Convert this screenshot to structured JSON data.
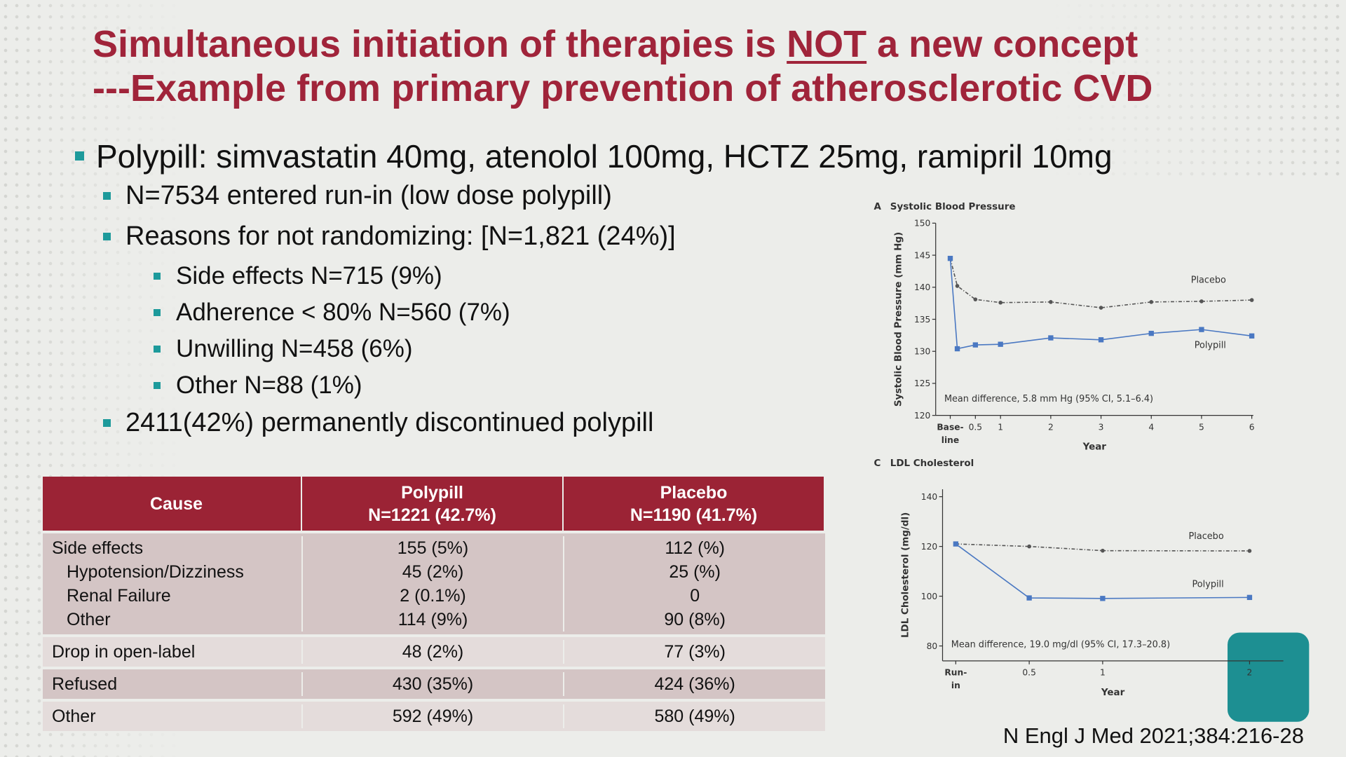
{
  "title": {
    "line1": {
      "before": "Simultaneous initiation of therapies is ",
      "emphasis": "NOT",
      "after": " a new concept"
    },
    "line2": "---Example from primary prevention of atherosclerotic CVD"
  },
  "bullets": [
    {
      "level": 1,
      "text": "Polypill: simvastatin 40mg, atenolol 100mg, HCTZ 25mg, ramipril 10mg"
    },
    {
      "level": 2,
      "text": "N=7534 entered run-in (low dose polypill)"
    },
    {
      "level": 2,
      "text": "Reasons for not randomizing: [N=1,821 (24%)]"
    },
    {
      "level": 3,
      "text": "Side effects N=715 (9%)"
    },
    {
      "level": 3,
      "text": "Adherence < 80% N=560 (7%)"
    },
    {
      "level": 3,
      "text": "Unwilling N=458 (6%)"
    },
    {
      "level": 3,
      "text": "Other N=88 (1%)"
    },
    {
      "level": 2,
      "text": "2411(42%) permanently discontinued polypill"
    }
  ],
  "table": {
    "columns": [
      {
        "name": "Cause"
      },
      {
        "name": "Polypill",
        "n": "N=1221 (42.7%)"
      },
      {
        "name": "Placebo",
        "n": "N=1190 (41.7%)"
      }
    ],
    "groups": [
      {
        "rows": [
          [
            "Side effects",
            "155 (5%)",
            "112 (%)"
          ],
          [
            "Hypotension/Dizziness",
            "45 (2%)",
            "25 (%)"
          ],
          [
            "Renal Failure",
            "2 (0.1%)",
            "0"
          ],
          [
            "Other",
            "114 (9%)",
            "90 (8%)"
          ]
        ],
        "indent": [
          false,
          true,
          true,
          true
        ]
      },
      {
        "rows": [
          [
            "Drop in open-label",
            "48 (2%)",
            "77 (3%)"
          ]
        ],
        "indent": [
          false
        ]
      },
      {
        "rows": [
          [
            "Refused",
            "430 (35%)",
            "424 (36%)"
          ]
        ],
        "indent": [
          false
        ]
      },
      {
        "rows": [
          [
            "Other",
            "592 (49%)",
            "580 (49%)"
          ]
        ],
        "indent": [
          false
        ]
      }
    ]
  },
  "charts": [
    {
      "type": "line",
      "panel": "A",
      "title": "Systolic Blood Pressure",
      "ylabel": "Systolic Blood Pressure (mm Hg)",
      "xlabel": "Year",
      "annotation": "Mean difference, 5.8 mm Hg (95% CI, 5.1–6.4)",
      "xlim": [
        -0.29,
        6.03
      ],
      "ylim": [
        120,
        150
      ],
      "xticks": [
        {
          "value": 0,
          "label": "Base-\nline"
        },
        0.5,
        1,
        2,
        3,
        4,
        5,
        6
      ],
      "yticks": [
        120,
        125,
        130,
        135,
        140,
        145,
        150
      ],
      "series": [
        {
          "name": "Placebo",
          "color": "#555555",
          "line_style": "dashed",
          "marker": "circle",
          "x": [
            0,
            0.14,
            0.5,
            1,
            2,
            3,
            4,
            5,
            6
          ],
          "values": [
            144.5,
            140.2,
            138.1,
            137.6,
            137.7,
            136.8,
            137.7,
            137.8,
            138
          ]
        },
        {
          "name": "Polypill",
          "color": "#4a78c2",
          "line_style": "solid",
          "marker": "square",
          "x": [
            0,
            0.14,
            0.5,
            1,
            2,
            3,
            4,
            5,
            6
          ],
          "values": [
            144.5,
            130.4,
            131,
            131.1,
            132.1,
            131.8,
            132.8,
            133.4,
            132.4
          ]
        }
      ]
    },
    {
      "type": "line",
      "panel": "C",
      "title": "LDL Cholesterol",
      "ylabel": "LDL Cholesterol (mg/dl)",
      "xlabel": "Year",
      "annotation": "Mean difference, 19.0 mg/dl (95% CI, 17.3–20.8)",
      "xlim": [
        -0.09,
        2.23
      ],
      "ylim": [
        74,
        143
      ],
      "xticks": [
        {
          "value": 0,
          "label": "Run-\nin"
        },
        0.5,
        1,
        2
      ],
      "yticks": [
        80,
        100,
        120,
        140
      ],
      "series": [
        {
          "name": "Placebo",
          "color": "#555555",
          "line_style": "dashed",
          "marker": "circle",
          "x": [
            0,
            0.5,
            1,
            2
          ],
          "values": [
            121,
            120,
            118.3,
            118.2
          ]
        },
        {
          "name": "Polypill",
          "color": "#4a78c2",
          "line_style": "solid",
          "marker": "square",
          "x": [
            0,
            0.5,
            1,
            2
          ],
          "values": [
            121,
            99.3,
            99.1,
            99.5
          ]
        }
      ]
    }
  ],
  "citation": "N Engl J Med 2021;384:216-28"
}
